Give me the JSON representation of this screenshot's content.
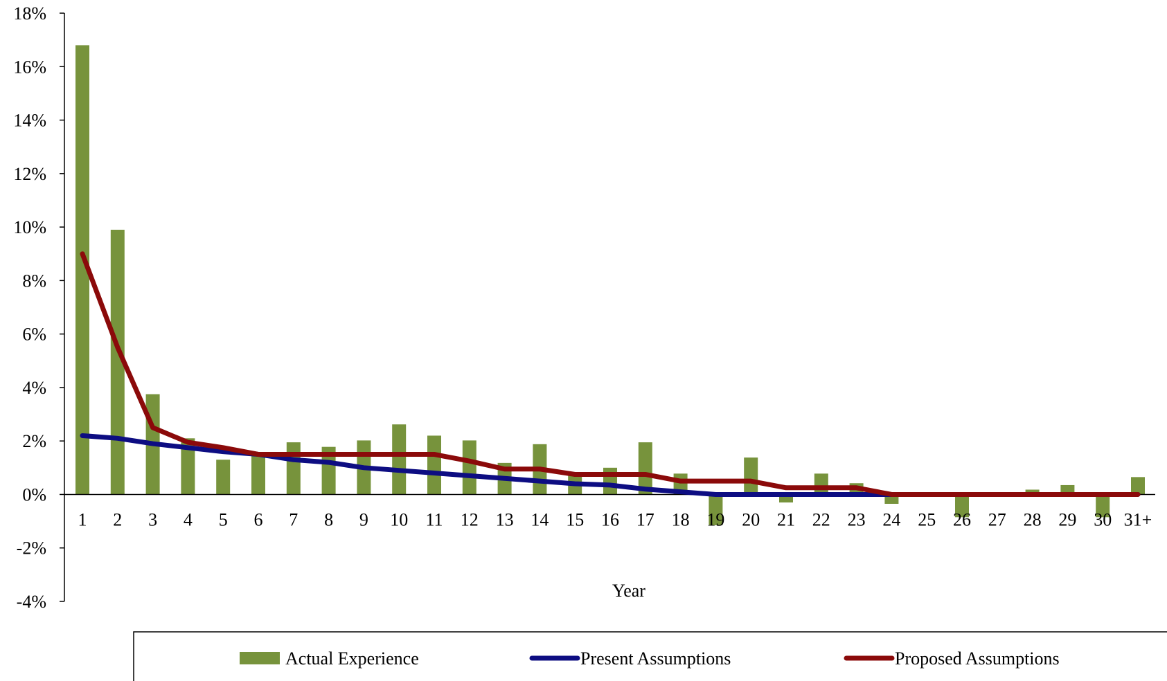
{
  "chart_data": {
    "type": "bar",
    "xlabel": "Year",
    "ylabel": "",
    "ylim": [
      -0.04,
      0.18
    ],
    "y_ticks": [
      -0.04,
      -0.02,
      0,
      0.02,
      0.04,
      0.06,
      0.08,
      0.1,
      0.12,
      0.14,
      0.16,
      0.18
    ],
    "y_tick_labels": [
      "-4%",
      "-2%",
      "0%",
      "2%",
      "4%",
      "6%",
      "8%",
      "10%",
      "12%",
      "14%",
      "16%",
      "18%"
    ],
    "grid": false,
    "legend_position": "bottom",
    "categories": [
      "1",
      "2",
      "3",
      "4",
      "5",
      "6",
      "7",
      "8",
      "9",
      "10",
      "11",
      "12",
      "13",
      "14",
      "15",
      "16",
      "17",
      "18",
      "19",
      "20",
      "21",
      "22",
      "23",
      "24",
      "25",
      "26",
      "27",
      "28",
      "29",
      "30",
      "31+"
    ],
    "series": [
      {
        "name": "Actual Experience",
        "kind": "bar",
        "color": "#77933C",
        "values": [
          0.168,
          0.099,
          0.0375,
          0.021,
          0.013,
          0.015,
          0.0195,
          0.0178,
          0.0202,
          0.0262,
          0.022,
          0.0202,
          0.0118,
          0.0188,
          0.008,
          0.01,
          0.0195,
          0.0078,
          -0.0115,
          0.0138,
          -0.003,
          0.0078,
          0.0042,
          -0.0035,
          0.0,
          -0.0085,
          0.0,
          0.0018,
          0.0035,
          -0.0085,
          0.0065
        ]
      },
      {
        "name": "Present Assumptions",
        "kind": "line",
        "color": "#0D0D82",
        "values": [
          0.022,
          0.021,
          0.019,
          0.0175,
          0.016,
          0.015,
          0.013,
          0.012,
          0.01,
          0.009,
          0.008,
          0.007,
          0.006,
          0.005,
          0.004,
          0.0035,
          0.002,
          0.001,
          0.0,
          0.0,
          0.0,
          0.0,
          0.0,
          0.0,
          0.0,
          0.0,
          0.0,
          0.0,
          0.0,
          0.0,
          0.0
        ]
      },
      {
        "name": "Proposed Assumptions",
        "kind": "line",
        "color": "#8B0A0A",
        "values": [
          0.09,
          0.055,
          0.025,
          0.0195,
          0.0175,
          0.015,
          0.015,
          0.015,
          0.015,
          0.015,
          0.015,
          0.0125,
          0.0095,
          0.0095,
          0.0075,
          0.0075,
          0.0075,
          0.005,
          0.005,
          0.005,
          0.0025,
          0.0025,
          0.0025,
          0.0,
          0.0,
          0.0,
          0.0,
          0.0,
          0.0,
          0.0,
          0.0
        ]
      }
    ]
  }
}
